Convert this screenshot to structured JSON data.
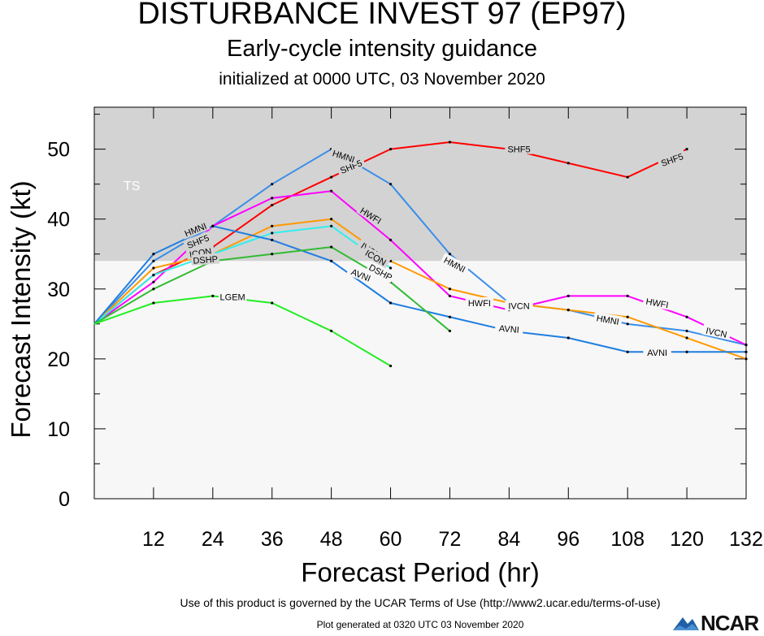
{
  "header": {
    "title": "DISTURBANCE INVEST 97 (EP97)",
    "subtitle": "Early-cycle intensity guidance",
    "init": "initialized at 0000 UTC, 03 November 2020"
  },
  "footer": {
    "terms": "Use of this product is governed by the UCAR Terms of Use (http://www2.ucar.edu/terms-of-use)",
    "generated": "Plot generated at 0320 UTC   03 November 2020",
    "logo": "NCAR"
  },
  "chart_data": {
    "type": "line",
    "title": "DISTURBANCE INVEST 97 (EP97)",
    "xlabel": "Forecast Period (hr)",
    "ylabel": "Forecast Intensity (kt)",
    "xlim": [
      0,
      132
    ],
    "ylim": [
      0,
      56
    ],
    "x_ticks": [
      12,
      24,
      36,
      48,
      60,
      72,
      84,
      96,
      108,
      120,
      132
    ],
    "y_ticks": [
      0,
      10,
      20,
      30,
      40,
      50
    ],
    "bands": [
      {
        "label": "TS",
        "from": 34,
        "to": 56,
        "color": "#d3d3d3"
      },
      {
        "label": "",
        "from": 0,
        "to": 34,
        "color": "#f7f7f7"
      }
    ],
    "grid": false,
    "series": [
      {
        "name": "SHF5",
        "color": "#ff0000",
        "x": [
          0,
          12,
          24,
          36,
          48,
          60,
          72,
          84,
          96,
          108,
          120
        ],
        "values": [
          25,
          32,
          36,
          42,
          46,
          50,
          51,
          50,
          48,
          46,
          50
        ]
      },
      {
        "name": "HMNI",
        "color": "#3a8ee8",
        "x": [
          0,
          12,
          24,
          36,
          48,
          60,
          72,
          84,
          96,
          108,
          120,
          132
        ],
        "values": [
          25,
          34,
          39,
          45,
          50,
          45,
          35,
          28,
          27,
          25,
          24,
          22
        ]
      },
      {
        "name": "HWFI",
        "color": "#ff00ff",
        "x": [
          0,
          12,
          24,
          36,
          48,
          60,
          72,
          84,
          96,
          108,
          120,
          132
        ],
        "values": [
          25,
          31,
          39,
          43,
          44,
          37,
          29,
          27,
          29,
          29,
          26,
          22
        ]
      },
      {
        "name": "IVCN",
        "color": "#ff9900",
        "x": [
          0,
          12,
          24,
          36,
          48,
          60,
          72,
          84,
          96,
          108,
          120,
          132
        ],
        "values": [
          25,
          33,
          35,
          39,
          40,
          34,
          30,
          28,
          27,
          26,
          23,
          20
        ]
      },
      {
        "name": "ICON",
        "color": "#33eeee",
        "x": [
          0,
          12,
          24,
          36,
          48,
          60
        ],
        "values": [
          25,
          32,
          35,
          38,
          39,
          33
        ]
      },
      {
        "name": "AVNI",
        "color": "#1f7ee0",
        "x": [
          0,
          12,
          24,
          36,
          48,
          60,
          72,
          84,
          96,
          108,
          120,
          132
        ],
        "values": [
          25,
          35,
          39,
          37,
          34,
          28,
          26,
          24,
          23,
          21,
          21,
          21
        ]
      },
      {
        "name": "DSHP",
        "color": "#33bb33",
        "x": [
          0,
          12,
          24,
          36,
          48,
          60,
          72
        ],
        "values": [
          25,
          30,
          34,
          35,
          36,
          31,
          24
        ]
      },
      {
        "name": "LGEM",
        "color": "#22ee22",
        "x": [
          0,
          12,
          24,
          36,
          48,
          60
        ],
        "values": [
          25,
          28,
          29,
          28,
          24,
          19
        ]
      }
    ],
    "series_labels": [
      {
        "series": "SHF5",
        "text": "SHF5",
        "x": 52,
        "y": 47.5,
        "angle": -22
      },
      {
        "series": "SHF5",
        "text": "SHF5",
        "x": 86,
        "y": 50,
        "angle": 0
      },
      {
        "series": "SHF5",
        "text": "SHF5",
        "x": 117,
        "y": 48.5,
        "angle": -20
      },
      {
        "series": "SHF5",
        "text": "SHF5",
        "x": 21,
        "y": 36.8,
        "angle": -22
      },
      {
        "series": "HMNI",
        "text": "HMNI",
        "x": 50.5,
        "y": 49,
        "angle": 18
      },
      {
        "series": "HMNI",
        "text": "HMNI",
        "x": 20.5,
        "y": 38.5,
        "angle": -22
      },
      {
        "series": "HMNI",
        "text": "HMNI",
        "x": 73,
        "y": 33.5,
        "angle": 28
      },
      {
        "series": "HMNI",
        "text": "HMNI",
        "x": 104,
        "y": 25.6,
        "angle": 10
      },
      {
        "series": "HWFI",
        "text": "HWFI",
        "x": 56,
        "y": 40.5,
        "angle": 32
      },
      {
        "series": "HWFI",
        "text": "HWFI",
        "x": 78,
        "y": 28,
        "angle": 0
      },
      {
        "series": "HWFI",
        "text": "HWFI",
        "x": 114,
        "y": 28,
        "angle": 10
      },
      {
        "series": "IVCN",
        "text": "IVCN",
        "x": 56,
        "y": 35.5,
        "angle": 34
      },
      {
        "series": "IVCN",
        "text": "IVCN",
        "x": 86,
        "y": 27.6,
        "angle": 0
      },
      {
        "series": "IVCN",
        "text": "IVCN",
        "x": 126,
        "y": 23.8,
        "angle": 12
      },
      {
        "series": "IVCN",
        "text": "ICON",
        "x": 21.5,
        "y": 35.2,
        "angle": -10
      },
      {
        "series": "ICON",
        "text": "ICON",
        "x": 57,
        "y": 34.5,
        "angle": 30
      },
      {
        "series": "AVNI",
        "text": "AVNI",
        "x": 54,
        "y": 32,
        "angle": 22
      },
      {
        "series": "AVNI",
        "text": "AVNI",
        "x": 84,
        "y": 24.3,
        "angle": 5
      },
      {
        "series": "AVNI",
        "text": "AVNI",
        "x": 114,
        "y": 20.9,
        "angle": 0
      },
      {
        "series": "DSHP",
        "text": "DSHP",
        "x": 58,
        "y": 32.4,
        "angle": 28
      },
      {
        "series": "DSHP",
        "text": "DSHP",
        "x": 22.5,
        "y": 34.2,
        "angle": -4
      },
      {
        "series": "LGEM",
        "text": "LGEM",
        "x": 28,
        "y": 28.9,
        "angle": 0
      }
    ]
  }
}
